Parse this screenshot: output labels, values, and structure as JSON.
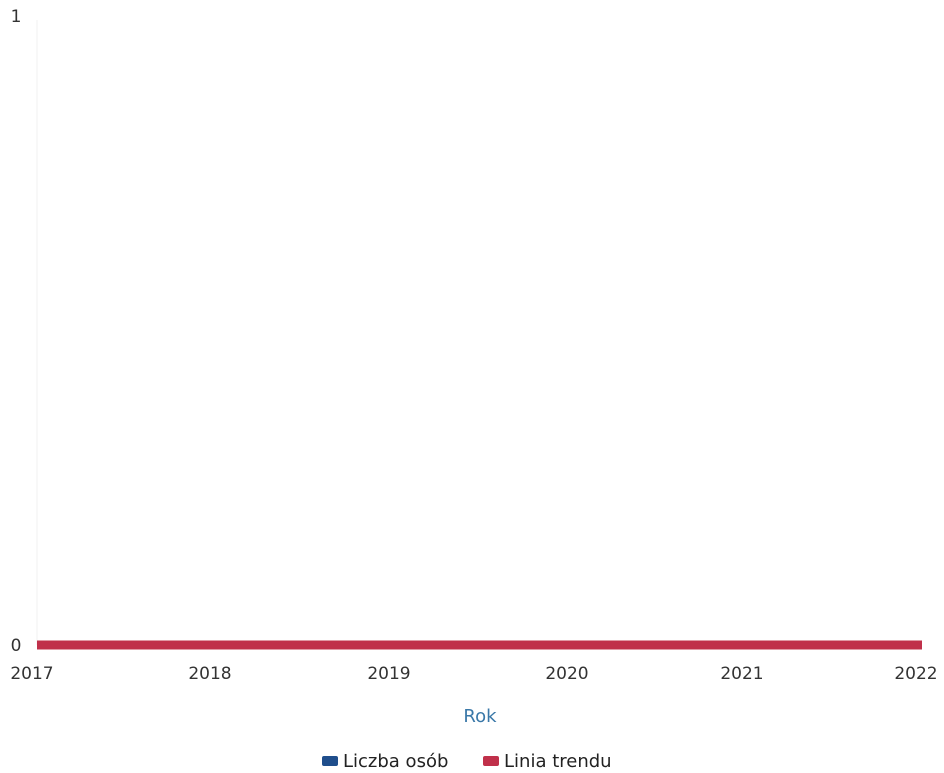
{
  "chart_data": {
    "type": "line",
    "x": [
      "2017",
      "2018",
      "2019",
      "2020",
      "2021",
      "2022"
    ],
    "series": [
      {
        "name": "Liczba osób",
        "values": [
          0,
          0,
          0,
          0,
          0,
          0
        ],
        "color": "#1f4e8c"
      },
      {
        "name": "Linia trendu",
        "values": [
          0,
          0,
          0,
          0,
          0,
          0
        ],
        "color": "#c0304a"
      }
    ],
    "xlabel": "Rok",
    "ylabel": "",
    "ylim": [
      0,
      1
    ],
    "yticks": [
      "0",
      "1"
    ],
    "grid": false,
    "legend_position": "bottom"
  }
}
